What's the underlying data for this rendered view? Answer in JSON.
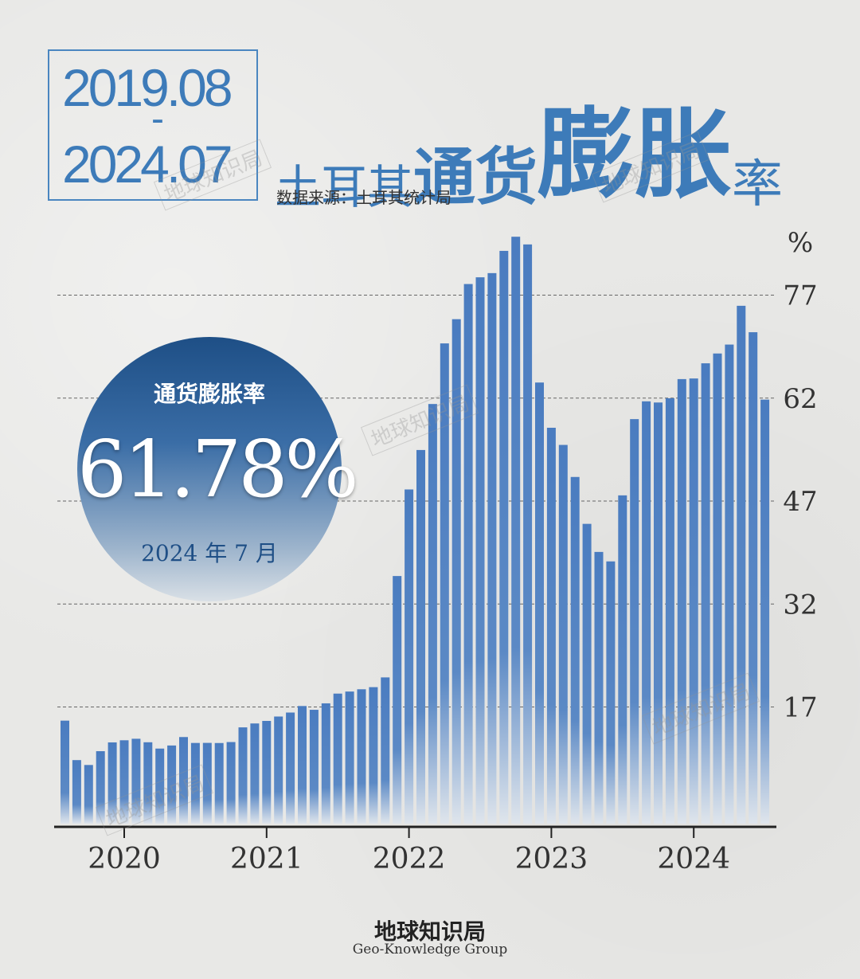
{
  "header": {
    "date_start": "2019.08",
    "date_sep": "-",
    "date_end": "2024.07",
    "title_part1": "土耳其",
    "title_part2": "通货",
    "title_part3": "膨胀",
    "title_part4": "率",
    "source": "数据来源：土耳其统计局"
  },
  "watermark": "地球知识局",
  "highlight": {
    "title": "通货膨胀率",
    "value": "61.78%",
    "date": "2024 年 7 月"
  },
  "footer": {
    "brand_cn": "地球知识局",
    "brand_en": "Geo-Knowledge Group"
  },
  "colors": {
    "accent": "#3d7bb9",
    "bar": "#4a7cc0"
  },
  "chart_data": {
    "type": "bar",
    "unit": "%",
    "x": [
      "2019-08",
      "2019-09",
      "2019-10",
      "2019-11",
      "2019-12",
      "2020-01",
      "2020-02",
      "2020-03",
      "2020-04",
      "2020-05",
      "2020-06",
      "2020-07",
      "2020-08",
      "2020-09",
      "2020-10",
      "2020-11",
      "2020-12",
      "2021-01",
      "2021-02",
      "2021-03",
      "2021-04",
      "2021-05",
      "2021-06",
      "2021-07",
      "2021-08",
      "2021-09",
      "2021-10",
      "2021-11",
      "2021-12",
      "2022-01",
      "2022-02",
      "2022-03",
      "2022-04",
      "2022-05",
      "2022-06",
      "2022-07",
      "2022-08",
      "2022-09",
      "2022-10",
      "2022-11",
      "2022-12",
      "2023-01",
      "2023-02",
      "2023-03",
      "2023-04",
      "2023-05",
      "2023-06",
      "2023-07",
      "2023-08",
      "2023-09",
      "2023-10",
      "2023-11",
      "2023-12",
      "2024-01",
      "2024-02",
      "2024-03",
      "2024-04",
      "2024-05",
      "2024-06",
      "2024-07"
    ],
    "values": [
      15.01,
      9.26,
      8.55,
      10.56,
      11.84,
      12.15,
      12.37,
      11.86,
      10.94,
      11.39,
      12.62,
      11.76,
      11.77,
      11.75,
      11.89,
      14.03,
      14.6,
      14.97,
      15.61,
      16.19,
      17.14,
      16.59,
      17.53,
      18.95,
      19.25,
      19.58,
      19.89,
      21.31,
      36.08,
      48.69,
      54.44,
      61.14,
      69.97,
      73.5,
      78.62,
      79.6,
      80.21,
      83.45,
      85.51,
      84.39,
      64.27,
      57.68,
      55.18,
      50.51,
      43.68,
      39.59,
      38.21,
      47.83,
      58.94,
      61.53,
      61.36,
      61.98,
      64.77,
      64.86,
      67.07,
      68.5,
      69.8,
      75.45,
      71.6,
      61.78
    ],
    "x_tick_labels": [
      "2020",
      "2021",
      "2022",
      "2023",
      "2024"
    ],
    "y_ticks": [
      17,
      32,
      47,
      62,
      77
    ],
    "ylim": [
      0,
      88
    ],
    "grid": "dashed horizontal",
    "title": "土耳其通货膨胀率"
  }
}
